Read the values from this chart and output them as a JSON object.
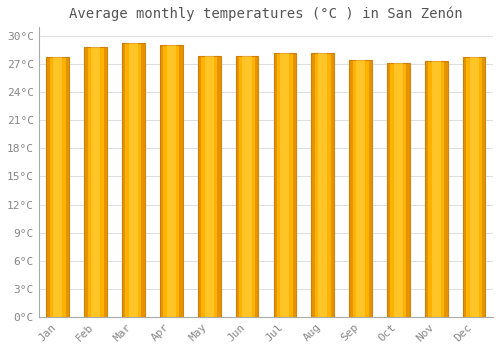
{
  "title": "Average monthly temperatures (°C ) in San Zenón",
  "months": [
    "Jan",
    "Feb",
    "Mar",
    "Apr",
    "May",
    "Jun",
    "Jul",
    "Aug",
    "Sep",
    "Oct",
    "Nov",
    "Dec"
  ],
  "temperatures": [
    27.8,
    28.8,
    29.3,
    29.1,
    27.9,
    27.9,
    28.2,
    28.2,
    27.5,
    27.1,
    27.3,
    27.8
  ],
  "bar_color_top": "#FFC200",
  "bar_color_mid": "#FFD040",
  "bar_color_edge": "#E89000",
  "background_color": "#FFFFFF",
  "fig_background": "#FFFFFF",
  "grid_color": "#DDDDDD",
  "ylim": [
    0,
    31
  ],
  "yticks": [
    0,
    3,
    6,
    9,
    12,
    15,
    18,
    21,
    24,
    27,
    30
  ],
  "title_fontsize": 10,
  "tick_fontsize": 8,
  "bar_width": 0.6
}
